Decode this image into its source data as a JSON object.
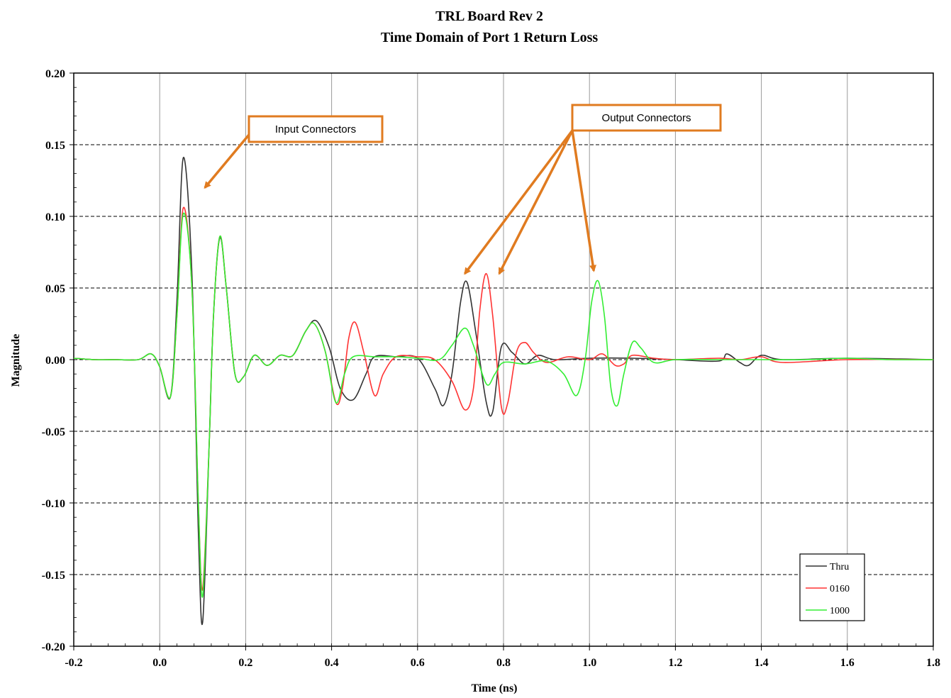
{
  "chart_data": {
    "type": "line",
    "title": "TRL Board  Rev 2",
    "subtitle": "Time Domain of Port 1 Return Loss",
    "xlabel": "Time (ns)",
    "ylabel": "Magnitude",
    "xlim": [
      -0.2,
      1.8
    ],
    "ylim": [
      -0.2,
      0.2
    ],
    "x_ticks": [
      "-0.2",
      "0.0",
      "0.2",
      "0.4",
      "0.6",
      "0.8",
      "1.0",
      "1.2",
      "1.4",
      "1.6",
      "1.8"
    ],
    "y_ticks": [
      "0.20",
      "0.15",
      "0.10",
      "0.05",
      "0.00",
      "-0.05",
      "-0.10",
      "-0.15",
      "-0.20"
    ],
    "grid": {
      "vertical": "solid",
      "horizontal": "dashed"
    },
    "legend_position": "bottom-right",
    "series": [
      {
        "name": "Thru",
        "color": "#333333",
        "points": [
          [
            -0.2,
            0.001
          ],
          [
            -0.15,
            0.0
          ],
          [
            -0.1,
            0.0
          ],
          [
            -0.05,
            0.0
          ],
          [
            -0.02,
            0.004
          ],
          [
            0.0,
            -0.005
          ],
          [
            0.025,
            -0.026
          ],
          [
            0.04,
            0.04
          ],
          [
            0.055,
            0.141
          ],
          [
            0.075,
            0.06
          ],
          [
            0.09,
            -0.12
          ],
          [
            0.1,
            -0.183
          ],
          [
            0.115,
            -0.06
          ],
          [
            0.125,
            0.03
          ],
          [
            0.14,
            0.085
          ],
          [
            0.155,
            0.05
          ],
          [
            0.175,
            -0.01
          ],
          [
            0.195,
            -0.012
          ],
          [
            0.22,
            0.003
          ],
          [
            0.25,
            -0.004
          ],
          [
            0.28,
            0.003
          ],
          [
            0.31,
            0.003
          ],
          [
            0.34,
            0.02
          ],
          [
            0.365,
            0.027
          ],
          [
            0.395,
            0.008
          ],
          [
            0.42,
            -0.02
          ],
          [
            0.45,
            -0.028
          ],
          [
            0.48,
            -0.01
          ],
          [
            0.5,
            0.002
          ],
          [
            0.55,
            0.002
          ],
          [
            0.6,
            0.001
          ],
          [
            0.64,
            -0.02
          ],
          [
            0.66,
            -0.032
          ],
          [
            0.68,
            -0.01
          ],
          [
            0.7,
            0.04
          ],
          [
            0.715,
            0.054
          ],
          [
            0.735,
            0.02
          ],
          [
            0.76,
            -0.03
          ],
          [
            0.775,
            -0.036
          ],
          [
            0.795,
            0.009
          ],
          [
            0.82,
            0.005
          ],
          [
            0.85,
            -0.003
          ],
          [
            0.88,
            0.003
          ],
          [
            0.92,
            0.0
          ],
          [
            1.0,
            0.001
          ],
          [
            1.1,
            0.001
          ],
          [
            1.2,
            0.0
          ],
          [
            1.3,
            -0.001
          ],
          [
            1.32,
            0.004
          ],
          [
            1.35,
            -0.002
          ],
          [
            1.37,
            -0.004
          ],
          [
            1.4,
            0.003
          ],
          [
            1.45,
            0.0
          ],
          [
            1.6,
            0.001
          ],
          [
            1.8,
            0.0
          ]
        ]
      },
      {
        "name": "0160",
        "color": "#ff3333",
        "points": [
          [
            -0.2,
            0.001
          ],
          [
            -0.15,
            0.0
          ],
          [
            -0.1,
            0.0
          ],
          [
            -0.05,
            0.0
          ],
          [
            -0.02,
            0.004
          ],
          [
            0.0,
            -0.005
          ],
          [
            0.025,
            -0.026
          ],
          [
            0.04,
            0.03
          ],
          [
            0.055,
            0.106
          ],
          [
            0.075,
            0.05
          ],
          [
            0.09,
            -0.1
          ],
          [
            0.1,
            -0.16
          ],
          [
            0.115,
            -0.06
          ],
          [
            0.125,
            0.03
          ],
          [
            0.14,
            0.086
          ],
          [
            0.155,
            0.05
          ],
          [
            0.175,
            -0.01
          ],
          [
            0.195,
            -0.012
          ],
          [
            0.22,
            0.003
          ],
          [
            0.25,
            -0.004
          ],
          [
            0.28,
            0.003
          ],
          [
            0.31,
            0.003
          ],
          [
            0.34,
            0.02
          ],
          [
            0.36,
            0.025
          ],
          [
            0.385,
            0.006
          ],
          [
            0.41,
            -0.03
          ],
          [
            0.425,
            -0.02
          ],
          [
            0.44,
            0.015
          ],
          [
            0.455,
            0.026
          ],
          [
            0.475,
            0.005
          ],
          [
            0.5,
            -0.025
          ],
          [
            0.52,
            -0.01
          ],
          [
            0.55,
            0.002
          ],
          [
            0.6,
            0.002
          ],
          [
            0.64,
            0.0
          ],
          [
            0.68,
            -0.015
          ],
          [
            0.71,
            -0.035
          ],
          [
            0.73,
            -0.02
          ],
          [
            0.745,
            0.035
          ],
          [
            0.76,
            0.06
          ],
          [
            0.775,
            0.03
          ],
          [
            0.795,
            -0.033
          ],
          [
            0.81,
            -0.03
          ],
          [
            0.83,
            0.005
          ],
          [
            0.85,
            0.012
          ],
          [
            0.87,
            0.005
          ],
          [
            0.9,
            -0.002
          ],
          [
            0.95,
            0.002
          ],
          [
            1.0,
            0.0
          ],
          [
            1.03,
            0.004
          ],
          [
            1.06,
            -0.004
          ],
          [
            1.08,
            -0.003
          ],
          [
            1.1,
            0.003
          ],
          [
            1.15,
            0.001
          ],
          [
            1.2,
            0.0
          ],
          [
            1.3,
            0.001
          ],
          [
            1.35,
            0.0
          ],
          [
            1.4,
            0.002
          ],
          [
            1.45,
            -0.002
          ],
          [
            1.6,
            0.0
          ],
          [
            1.8,
            0.0
          ]
        ]
      },
      {
        "name": "1000",
        "color": "#33ee33",
        "points": [
          [
            -0.2,
            0.001
          ],
          [
            -0.15,
            0.0
          ],
          [
            -0.1,
            0.0
          ],
          [
            -0.05,
            0.0
          ],
          [
            -0.02,
            0.004
          ],
          [
            0.0,
            -0.005
          ],
          [
            0.025,
            -0.026
          ],
          [
            0.04,
            0.03
          ],
          [
            0.055,
            0.102
          ],
          [
            0.075,
            0.05
          ],
          [
            0.09,
            -0.1
          ],
          [
            0.1,
            -0.165
          ],
          [
            0.115,
            -0.06
          ],
          [
            0.125,
            0.03
          ],
          [
            0.14,
            0.086
          ],
          [
            0.155,
            0.05
          ],
          [
            0.175,
            -0.01
          ],
          [
            0.195,
            -0.012
          ],
          [
            0.22,
            0.003
          ],
          [
            0.25,
            -0.004
          ],
          [
            0.28,
            0.003
          ],
          [
            0.31,
            0.003
          ],
          [
            0.34,
            0.02
          ],
          [
            0.36,
            0.025
          ],
          [
            0.385,
            0.006
          ],
          [
            0.41,
            -0.03
          ],
          [
            0.43,
            -0.01
          ],
          [
            0.45,
            0.002
          ],
          [
            0.5,
            0.002
          ],
          [
            0.55,
            0.002
          ],
          [
            0.6,
            0.001
          ],
          [
            0.65,
            0.0
          ],
          [
            0.68,
            0.01
          ],
          [
            0.71,
            0.022
          ],
          [
            0.73,
            0.01
          ],
          [
            0.76,
            -0.017
          ],
          [
            0.78,
            -0.01
          ],
          [
            0.8,
            -0.002
          ],
          [
            0.85,
            -0.003
          ],
          [
            0.9,
            -0.001
          ],
          [
            0.94,
            -0.01
          ],
          [
            0.97,
            -0.025
          ],
          [
            0.99,
            0.0
          ],
          [
            1.005,
            0.04
          ],
          [
            1.02,
            0.055
          ],
          [
            1.035,
            0.03
          ],
          [
            1.05,
            -0.02
          ],
          [
            1.065,
            -0.032
          ],
          [
            1.08,
            -0.01
          ],
          [
            1.1,
            0.012
          ],
          [
            1.12,
            0.008
          ],
          [
            1.15,
            -0.002
          ],
          [
            1.2,
            0.0
          ],
          [
            1.3,
            0.0
          ],
          [
            1.4,
            0.0
          ],
          [
            1.5,
            0.0
          ],
          [
            1.6,
            0.001
          ],
          [
            1.7,
            0.0
          ],
          [
            1.8,
            0.0
          ]
        ]
      }
    ],
    "annotations": [
      {
        "text": "Input Connectors",
        "target_x": [
          0.105
        ],
        "target_y": [
          0.12
        ]
      },
      {
        "text": "Output Connectors",
        "target_x": [
          0.71,
          0.79,
          1.01
        ],
        "target_y": [
          0.06,
          0.06,
          0.062
        ]
      }
    ]
  },
  "colors": {
    "annotation_border": "#e07b20",
    "annotation_arrow": "#e07b20",
    "grid": "#999999"
  }
}
